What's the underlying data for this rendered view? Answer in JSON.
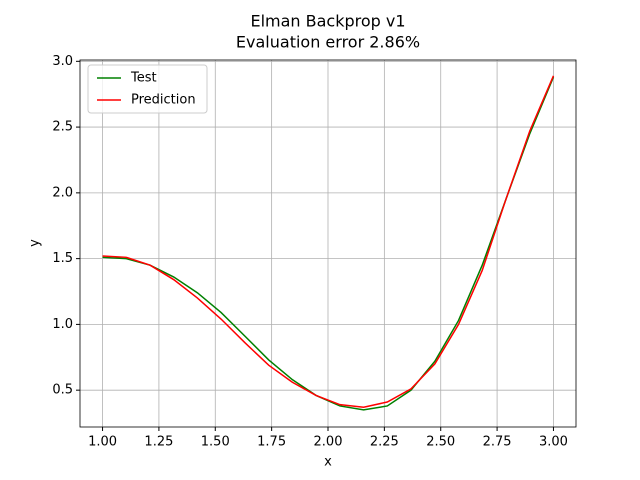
{
  "chart_data": {
    "type": "line",
    "title": "Elman Backprop v1",
    "subtitle": "Evaluation error 2.86%",
    "xlabel": "x",
    "ylabel": "y",
    "x": [
      1.0,
      1.105,
      1.211,
      1.316,
      1.421,
      1.526,
      1.632,
      1.737,
      1.842,
      1.947,
      2.053,
      2.158,
      2.263,
      2.368,
      2.474,
      2.579,
      2.684,
      2.789,
      2.895,
      3.0
    ],
    "series": [
      {
        "name": "Test",
        "color": "#008000",
        "values": [
          1.51,
          1.5,
          1.45,
          1.36,
          1.24,
          1.09,
          0.91,
          0.73,
          0.58,
          0.46,
          0.38,
          0.35,
          0.38,
          0.5,
          0.72,
          1.03,
          1.45,
          1.95,
          2.45,
          2.88
        ]
      },
      {
        "name": "Prediction",
        "color": "#ff0000",
        "values": [
          1.52,
          1.51,
          1.45,
          1.34,
          1.2,
          1.04,
          0.86,
          0.69,
          0.56,
          0.46,
          0.39,
          0.37,
          0.41,
          0.51,
          0.7,
          1.0,
          1.41,
          1.95,
          2.47,
          2.89
        ]
      }
    ],
    "xlim": [
      0.9,
      3.1
    ],
    "ylim": [
      0.22,
      3.01
    ],
    "xticks": [
      {
        "value": 1.0,
        "label": "1.00"
      },
      1.25,
      {
        "value": 1.5,
        "label": "1.50"
      },
      1.75,
      {
        "value": 2.0,
        "label": "2.00"
      },
      2.25,
      {
        "value": 2.5,
        "label": "2.50"
      },
      2.75,
      {
        "value": 3.0,
        "label": "3.00"
      }
    ],
    "yticks": [
      0.5,
      {
        "value": 1.0,
        "label": "1.0"
      },
      1.5,
      {
        "value": 2.0,
        "label": "2.0"
      },
      2.5,
      {
        "value": 3.0,
        "label": "3.0"
      }
    ],
    "grid": true,
    "legend": "upper left"
  }
}
